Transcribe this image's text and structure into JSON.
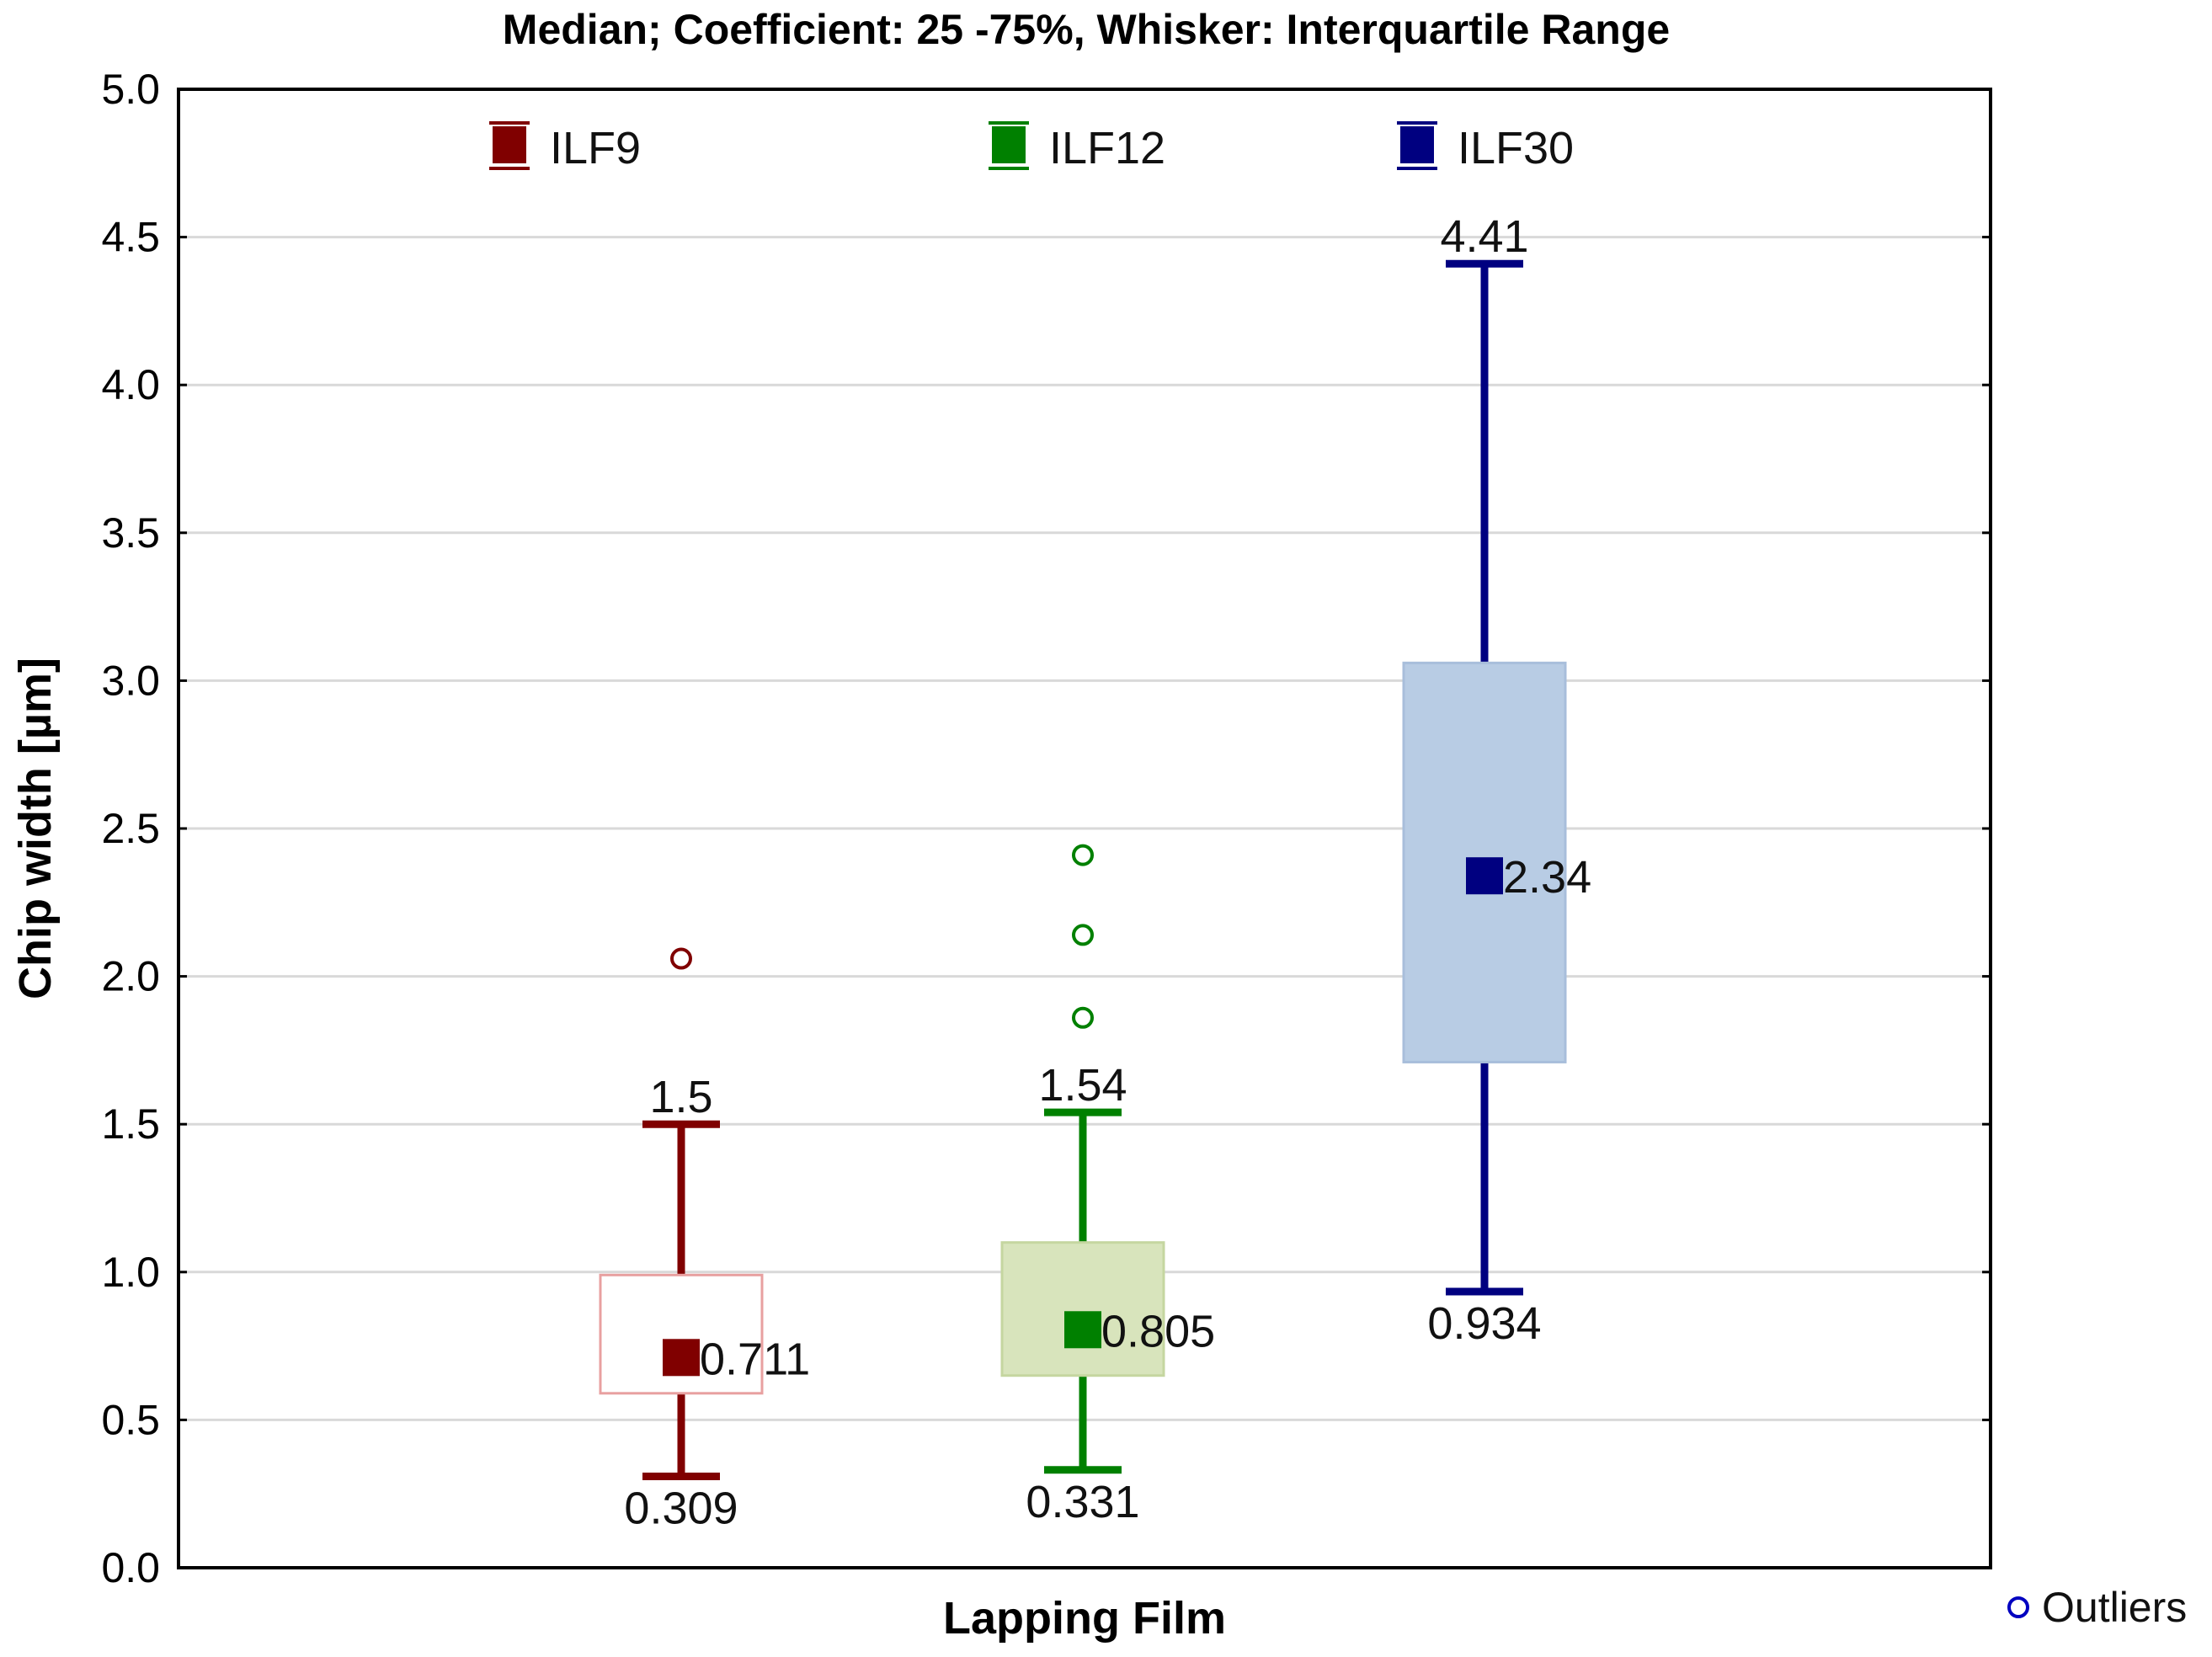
{
  "chart_data": {
    "type": "box",
    "title": "Median; Coefficient: 25 -75%, Whisker: Interquartile Range",
    "xlabel": "Lapping Film",
    "ylabel": "Chip width [µm]",
    "ylim": [
      0,
      5
    ],
    "yticks": [
      "0.0",
      "0.5",
      "1.0",
      "1.5",
      "2.0",
      "2.5",
      "3.0",
      "3.5",
      "4.0",
      "4.5",
      "5.0"
    ],
    "grid": true,
    "legend_position": "top",
    "outliers_legend_label": "Outliers",
    "series": [
      {
        "name": "ILF9",
        "color": "#800000",
        "box_fill": "#ffffff",
        "box_stroke": "#e8a0a0",
        "median": 0.711,
        "q1": 0.59,
        "q3": 0.99,
        "whisker_low": 0.309,
        "whisker_high": 1.5,
        "median_label": "0.711",
        "low_label": "0.309",
        "high_label": "1.5",
        "outliers": [
          2.06
        ]
      },
      {
        "name": "ILF12",
        "color": "#008000",
        "box_fill": "#d8e4bc",
        "box_stroke": "#c5d6a0",
        "median": 0.805,
        "q1": 0.65,
        "q3": 1.1,
        "whisker_low": 0.331,
        "whisker_high": 1.54,
        "median_label": "0.805",
        "low_label": "0.331",
        "high_label": "1.54",
        "outliers": [
          1.86,
          2.14,
          2.41
        ]
      },
      {
        "name": "ILF30",
        "color": "#000080",
        "box_fill": "#b8cce4",
        "box_stroke": "#a8bedb",
        "median": 2.34,
        "q1": 1.71,
        "q3": 3.06,
        "whisker_low": 0.934,
        "whisker_high": 4.41,
        "median_label": "2.34",
        "low_label": "0.934",
        "high_label": "4.41",
        "outliers": []
      }
    ]
  },
  "colors": {
    "grid": "#d9d9d9",
    "axis": "#000000",
    "outlier_legend": "#0000c0"
  }
}
